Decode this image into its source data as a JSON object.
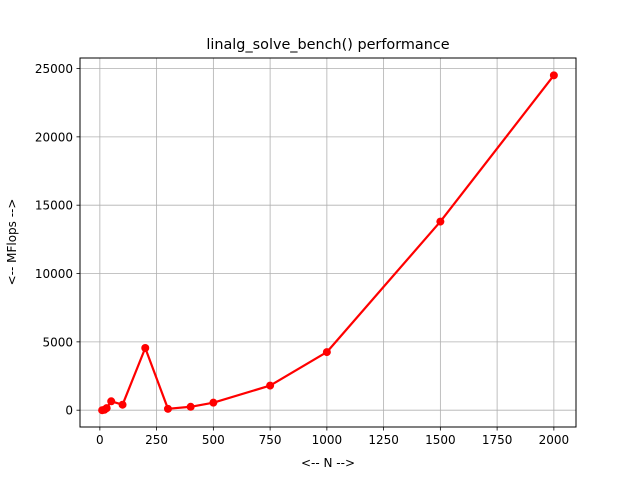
{
  "chart_data": {
    "type": "line",
    "title": "linalg_solve_bench() performance",
    "xlabel": "<-- N -->",
    "ylabel": "<-- MFlops -->",
    "xlim": [
      -87.5,
      2097.5
    ],
    "ylim": [
      -1230,
      25770
    ],
    "xticks": [
      0,
      250,
      500,
      750,
      1000,
      1250,
      1500,
      1750,
      2000
    ],
    "yticks": [
      0,
      5000,
      10000,
      15000,
      20000,
      25000
    ],
    "grid": true,
    "series": [
      {
        "color": "#ff0000",
        "marker": "circle",
        "x": [
          10,
          20,
          30,
          50,
          100,
          200,
          300,
          400,
          500,
          750,
          1000,
          1500,
          2000
        ],
        "y": [
          0,
          30,
          150,
          650,
          400,
          4550,
          100,
          250,
          550,
          1800,
          4250,
          13800,
          24500
        ]
      }
    ]
  }
}
